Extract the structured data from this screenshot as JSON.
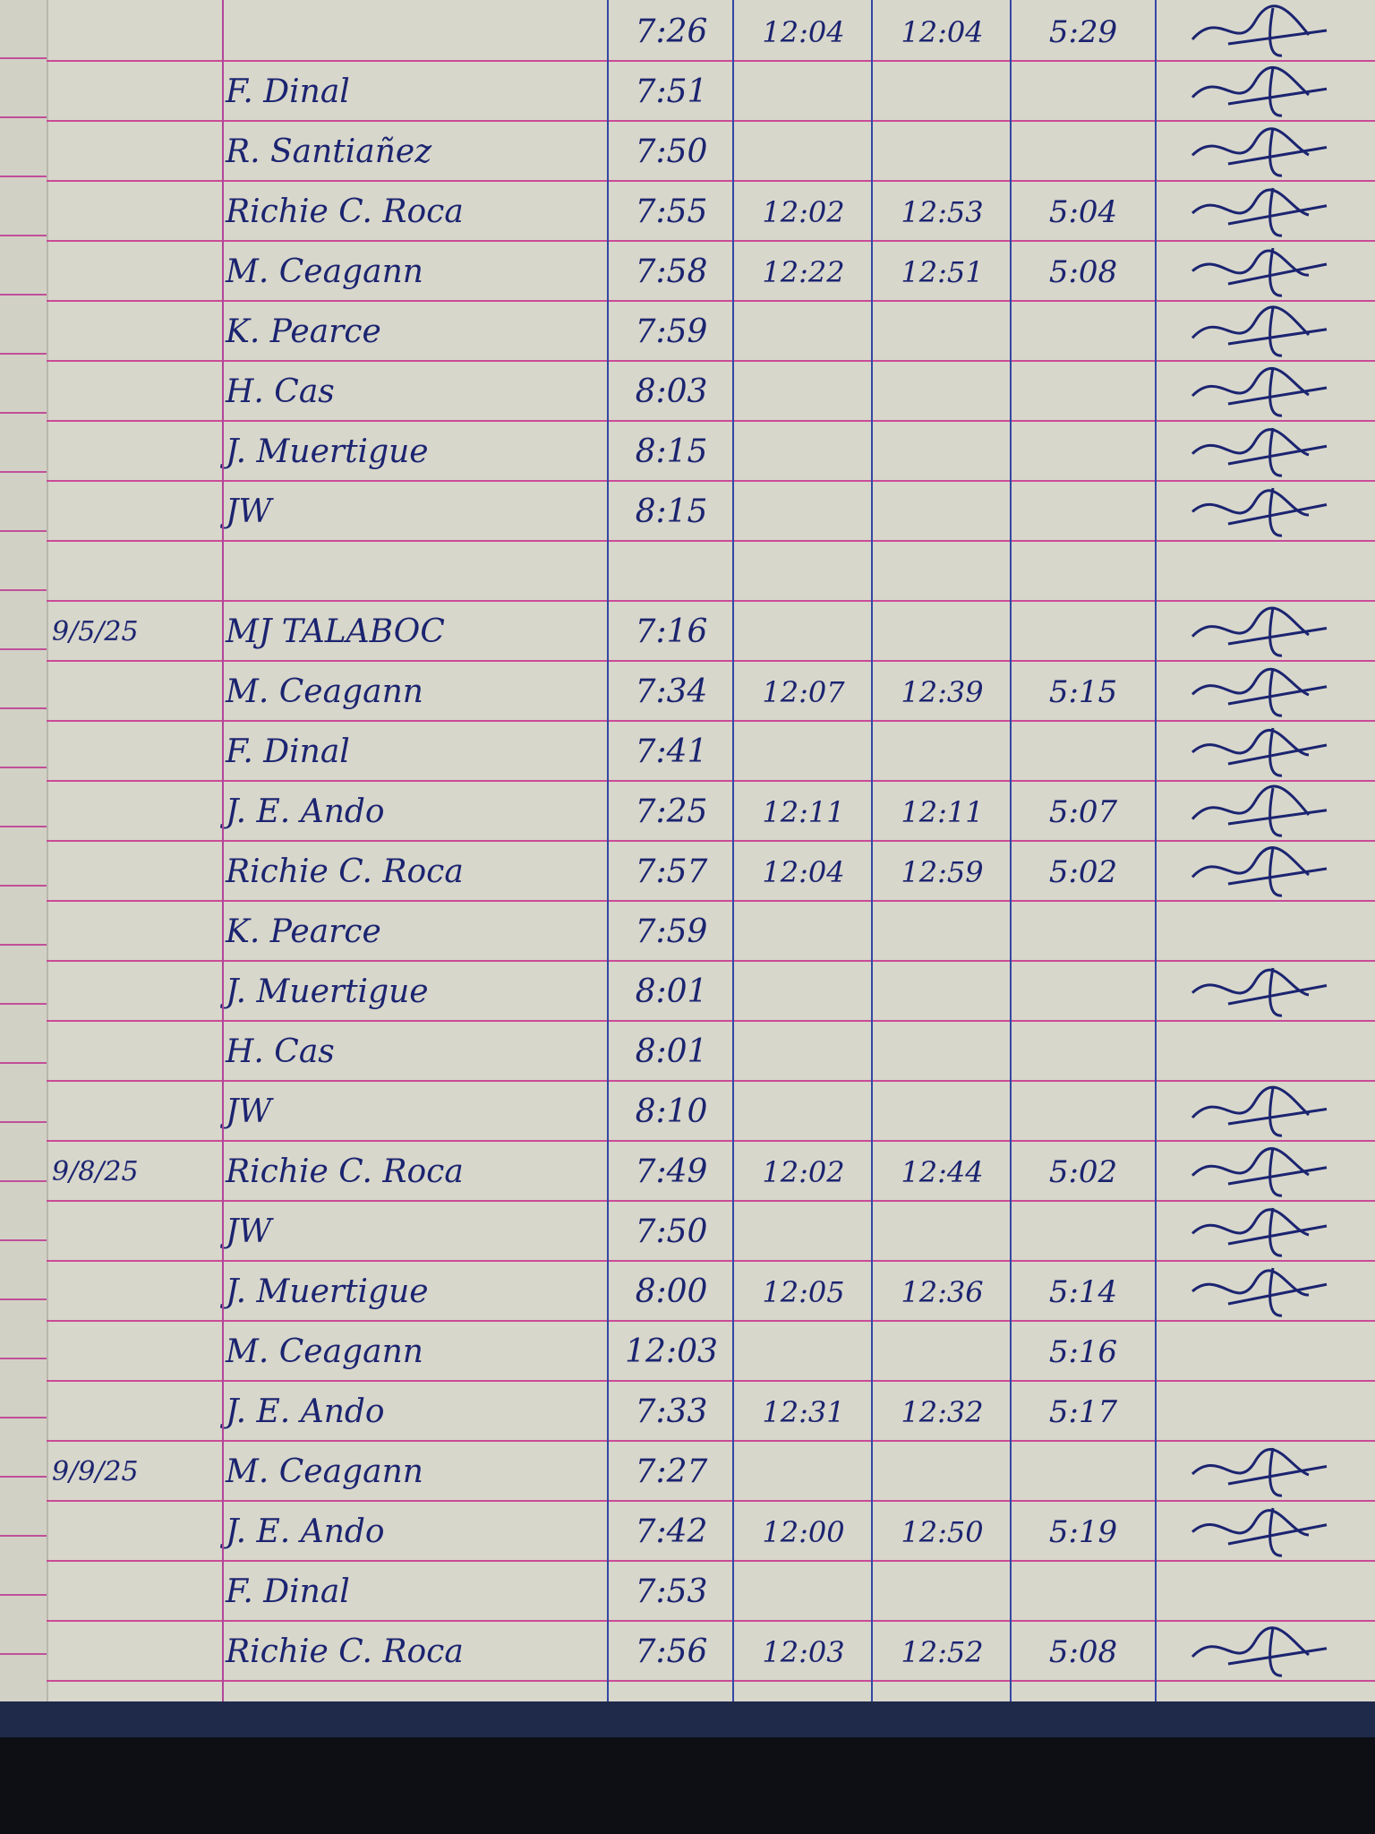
{
  "logbook": {
    "entries": [
      {
        "date": "",
        "name": "",
        "time_in": "7:26",
        "lunch_out": "12:04",
        "lunch_in": "12:04",
        "time_out": "5:29",
        "signed": true
      },
      {
        "date": "",
        "name": "F. Dinal",
        "time_in": "7:51",
        "lunch_out": "",
        "lunch_in": "",
        "time_out": "",
        "signed": true
      },
      {
        "date": "",
        "name": "R. Santiañez",
        "time_in": "7:50",
        "lunch_out": "",
        "lunch_in": "",
        "time_out": "",
        "signed": true
      },
      {
        "date": "",
        "name": "Richie C. Roca",
        "time_in": "7:55",
        "lunch_out": "12:02",
        "lunch_in": "12:53",
        "time_out": "5:04",
        "signed": true
      },
      {
        "date": "",
        "name": "M. Ceagann",
        "time_in": "7:58",
        "lunch_out": "12:22",
        "lunch_in": "12:51",
        "time_out": "5:08",
        "signed": true
      },
      {
        "date": "",
        "name": "K. Pearce",
        "time_in": "7:59",
        "lunch_out": "",
        "lunch_in": "",
        "time_out": "",
        "signed": true
      },
      {
        "date": "",
        "name": "H. Cas",
        "time_in": "8:03",
        "lunch_out": "",
        "lunch_in": "",
        "time_out": "",
        "signed": true
      },
      {
        "date": "",
        "name": "J. Muertigue",
        "time_in": "8:15",
        "lunch_out": "",
        "lunch_in": "",
        "time_out": "",
        "signed": true
      },
      {
        "date": "",
        "name": "JW",
        "time_in": "8:15",
        "lunch_out": "",
        "lunch_in": "",
        "time_out": "",
        "signed": true
      },
      {
        "date": "",
        "name": "",
        "time_in": "",
        "lunch_out": "",
        "lunch_in": "",
        "time_out": "",
        "signed": false
      },
      {
        "date": "9/5/25",
        "name": "MJ TALABOC",
        "time_in": "7:16",
        "lunch_out": "",
        "lunch_in": "",
        "time_out": "",
        "signed": true
      },
      {
        "date": "",
        "name": "M. Ceagann",
        "time_in": "7:34",
        "lunch_out": "12:07",
        "lunch_in": "12:39",
        "time_out": "5:15",
        "signed": true
      },
      {
        "date": "",
        "name": "F. Dinal",
        "time_in": "7:41",
        "lunch_out": "",
        "lunch_in": "",
        "time_out": "",
        "signed": true
      },
      {
        "date": "",
        "name": "J. E. Ando",
        "time_in": "7:25",
        "lunch_out": "12:11",
        "lunch_in": "12:11",
        "time_out": "5:07",
        "signed": true
      },
      {
        "date": "",
        "name": "Richie C. Roca",
        "time_in": "7:57",
        "lunch_out": "12:04",
        "lunch_in": "12:59",
        "time_out": "5:02",
        "signed": true
      },
      {
        "date": "",
        "name": "K. Pearce",
        "time_in": "7:59",
        "lunch_out": "",
        "lunch_in": "",
        "time_out": "",
        "signed": false
      },
      {
        "date": "",
        "name": "J. Muertigue",
        "time_in": "8:01",
        "lunch_out": "",
        "lunch_in": "",
        "time_out": "",
        "signed": true
      },
      {
        "date": "",
        "name": "H. Cas",
        "time_in": "8:01",
        "lunch_out": "",
        "lunch_in": "",
        "time_out": "",
        "signed": false
      },
      {
        "date": "",
        "name": "JW",
        "time_in": "8:10",
        "lunch_out": "",
        "lunch_in": "",
        "time_out": "",
        "signed": true
      },
      {
        "date": "9/8/25",
        "name": "Richie C. Roca",
        "time_in": "7:49",
        "lunch_out": "12:02",
        "lunch_in": "12:44",
        "time_out": "5:02",
        "signed": true
      },
      {
        "date": "",
        "name": "JW",
        "time_in": "7:50",
        "lunch_out": "",
        "lunch_in": "",
        "time_out": "",
        "signed": true
      },
      {
        "date": "",
        "name": "J. Muertigue",
        "time_in": "8:00",
        "lunch_out": "12:05",
        "lunch_in": "12:36",
        "time_out": "5:14",
        "signed": true
      },
      {
        "date": "",
        "name": "M. Ceagann",
        "time_in": "12:03",
        "lunch_out": "",
        "lunch_in": "",
        "time_out": "5:16",
        "signed": false
      },
      {
        "date": "",
        "name": "J. E. Ando",
        "time_in": "7:33",
        "lunch_out": "12:31",
        "lunch_in": "12:32",
        "time_out": "5:17",
        "signed": false
      },
      {
        "date": "9/9/25",
        "name": "M. Ceagann",
        "time_in": "7:27",
        "lunch_out": "",
        "lunch_in": "",
        "time_out": "",
        "signed": true
      },
      {
        "date": "",
        "name": "J. E. Ando",
        "time_in": "7:42",
        "lunch_out": "12:00",
        "lunch_in": "12:50",
        "time_out": "5:19",
        "signed": true
      },
      {
        "date": "",
        "name": "F. Dinal",
        "time_in": "7:53",
        "lunch_out": "",
        "lunch_in": "",
        "time_out": "",
        "signed": false
      },
      {
        "date": "",
        "name": "Richie C. Roca",
        "time_in": "7:56",
        "lunch_out": "12:03",
        "lunch_in": "12:52",
        "time_out": "5:08",
        "signed": true
      }
    ]
  },
  "colors": {
    "paper": "#d8d7cb",
    "ruling": "#c94b97",
    "column_lines": "#3347a6",
    "ink": "#1b2470",
    "cover": "#1f2a4a"
  }
}
